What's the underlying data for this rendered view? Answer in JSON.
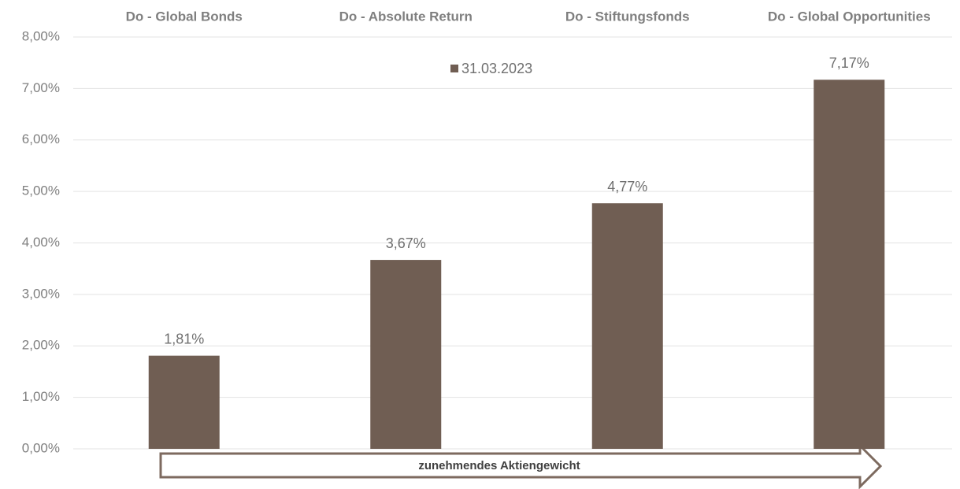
{
  "chart_data": {
    "type": "bar",
    "categories": [
      "Do - Global Bonds",
      "Do - Absolute Return",
      "Do - Stiftungsfonds",
      "Do - Global Opportunities"
    ],
    "series": [
      {
        "name": "31.03.2023",
        "color": "#705e53",
        "values": [
          1.81,
          3.67,
          4.77,
          7.17
        ],
        "value_labels": [
          "1,81%",
          "3,67%",
          "4,77%",
          "7,17%"
        ]
      }
    ],
    "ylim": [
      0,
      8
    ],
    "yticks": [
      {
        "value": 0,
        "label": "0,00%"
      },
      {
        "value": 1,
        "label": "1,00%"
      },
      {
        "value": 2,
        "label": "2,00%"
      },
      {
        "value": 3,
        "label": "3,00%"
      },
      {
        "value": 4,
        "label": "4,00%"
      },
      {
        "value": 5,
        "label": "5,00%"
      },
      {
        "value": 6,
        "label": "6,00%"
      },
      {
        "value": 7,
        "label": "7,00%"
      },
      {
        "value": 8,
        "label": "8,00%"
      }
    ],
    "grid": true,
    "annotation": "zunehmendes Aktiengewicht"
  }
}
